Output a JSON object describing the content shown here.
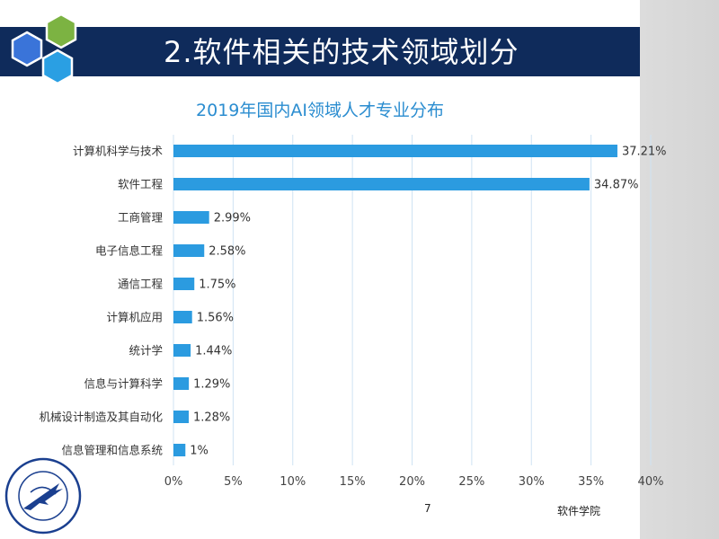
{
  "slide": {
    "title": "2.软件相关的技术领域划分",
    "page_number": "7",
    "footer_text": "软件学院"
  },
  "colors": {
    "title_bar": "#0f2b5b",
    "bar": "#2b9be0",
    "chart_title": "#2b8dd0",
    "hex_blue": "#3a74d9",
    "hex_green": "#7cb342",
    "hex_light": "#2a9fe3"
  },
  "logo": {
    "icon": "university-seal-icon",
    "text": "NORTHWESTERN POLYTECHNICAL UNIVERSITY 1938 西北工业大学"
  },
  "chart_data": {
    "type": "bar",
    "orientation": "horizontal",
    "title": "2019年国内AI领域人才专业分布",
    "categories": [
      "计算机科学与技术",
      "软件工程",
      "工商管理",
      "电子信息工程",
      "通信工程",
      "计算机应用",
      "统计学",
      "信息与计算科学",
      "机械设计制造及其自动化",
      "信息管理和信息系统"
    ],
    "values": [
      37.21,
      34.87,
      2.99,
      2.58,
      1.75,
      1.56,
      1.44,
      1.29,
      1.28,
      1
    ],
    "value_labels": [
      "37.21%",
      "34.87%",
      "2.99%",
      "2.58%",
      "1.75%",
      "1.56%",
      "1.44%",
      "1.29%",
      "1.28%",
      "1%"
    ],
    "xlim": [
      0,
      40
    ],
    "x_ticks": [
      0,
      5,
      10,
      15,
      20,
      25,
      30,
      35,
      40
    ],
    "x_tick_labels": [
      "0%",
      "5%",
      "10%",
      "15%",
      "20%",
      "25%",
      "30%",
      "35%",
      "40%"
    ],
    "grid": true,
    "legend": "none"
  }
}
